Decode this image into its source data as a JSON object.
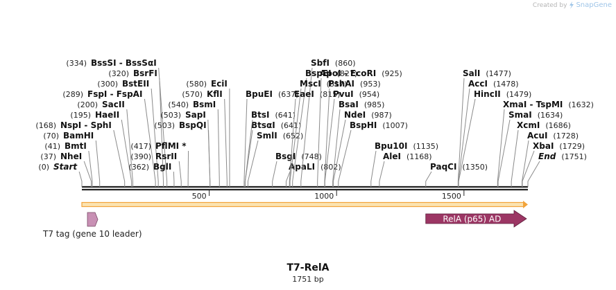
{
  "credit": {
    "prefix": "Created by",
    "brand": "SnapGene",
    "logo_icon": "snapgene-logo-icon"
  },
  "plasmid": {
    "name": "T7-RelA",
    "length_text": "1751 bp",
    "length": 1751
  },
  "ruler": {
    "ticks": [
      500,
      1000,
      1500
    ]
  },
  "features": [
    {
      "name": "T7 tag (gene 10 leader)",
      "start": 30,
      "end": 62,
      "direction": "forward",
      "color": "#c890b4"
    },
    {
      "name": "RelA (p65) AD",
      "start": 1350,
      "end": 1751,
      "direction": "forward",
      "color": "#9c3664"
    }
  ],
  "orf": {
    "start": 0,
    "end": 1751,
    "color": "#f2a33a"
  },
  "colors": {
    "backbone": "#222222",
    "leader": "#8a8a8a",
    "orf_fill": "#fbe3b0"
  },
  "sites": [
    {
      "name": "Start",
      "pos": 0,
      "italic": true
    },
    {
      "name": "NheI",
      "pos": 37
    },
    {
      "name": "BmtI",
      "pos": 41
    },
    {
      "name": "BamHI",
      "pos": 70
    },
    {
      "name": "NspI - SphI",
      "pos": 168
    },
    {
      "name": "HaeII",
      "pos": 195
    },
    {
      "name": "SacII",
      "pos": 200
    },
    {
      "name": "FspI - FspAI",
      "pos": 289
    },
    {
      "name": "BstEII",
      "pos": 300
    },
    {
      "name": "BsrFI",
      "pos": 320
    },
    {
      "name": "BssSI - BssSαI",
      "pos": 334
    },
    {
      "name": "BglI",
      "pos": 362
    },
    {
      "name": "RsrII",
      "pos": 390
    },
    {
      "name": "PflMI *",
      "pos": 417
    },
    {
      "name": "BspQI",
      "pos": 503
    },
    {
      "name": "SapI",
      "pos": 503
    },
    {
      "name": "BsmI",
      "pos": 540
    },
    {
      "name": "KflI",
      "pos": 570
    },
    {
      "name": "EciI",
      "pos": 580
    },
    {
      "name": "BpuEI",
      "pos": 637
    },
    {
      "name": "BtsI",
      "pos": 641
    },
    {
      "name": "BtsαI",
      "pos": 641
    },
    {
      "name": "SmlI",
      "pos": 652
    },
    {
      "name": "BsgI",
      "pos": 748
    },
    {
      "name": "ApaLI",
      "pos": 802
    },
    {
      "name": "EaeI",
      "pos": 815
    },
    {
      "name": "MscI",
      "pos": 817
    },
    {
      "name": "BspEI",
      "pos": 827
    },
    {
      "name": "SbfI",
      "pos": 860
    },
    {
      "name": "ApoI - EcoRI",
      "pos": 925
    },
    {
      "name": "PshAI",
      "pos": 953
    },
    {
      "name": "PvuI",
      "pos": 954
    },
    {
      "name": "BsaI",
      "pos": 985
    },
    {
      "name": "NdeI",
      "pos": 987
    },
    {
      "name": "BspHI",
      "pos": 1007
    },
    {
      "name": "Bpu10I",
      "pos": 1135
    },
    {
      "name": "AleI",
      "pos": 1168
    },
    {
      "name": "PaqCI",
      "pos": 1350
    },
    {
      "name": "SalI",
      "pos": 1477
    },
    {
      "name": "AccI",
      "pos": 1478
    },
    {
      "name": "HincII",
      "pos": 1479
    },
    {
      "name": "XmaI - TspMI",
      "pos": 1632
    },
    {
      "name": "SmaI",
      "pos": 1634
    },
    {
      "name": "XcmI",
      "pos": 1686
    },
    {
      "name": "AcuI",
      "pos": 1728
    },
    {
      "name": "XbaI",
      "pos": 1729
    },
    {
      "name": "End",
      "pos": 1751,
      "italic": true
    }
  ]
}
